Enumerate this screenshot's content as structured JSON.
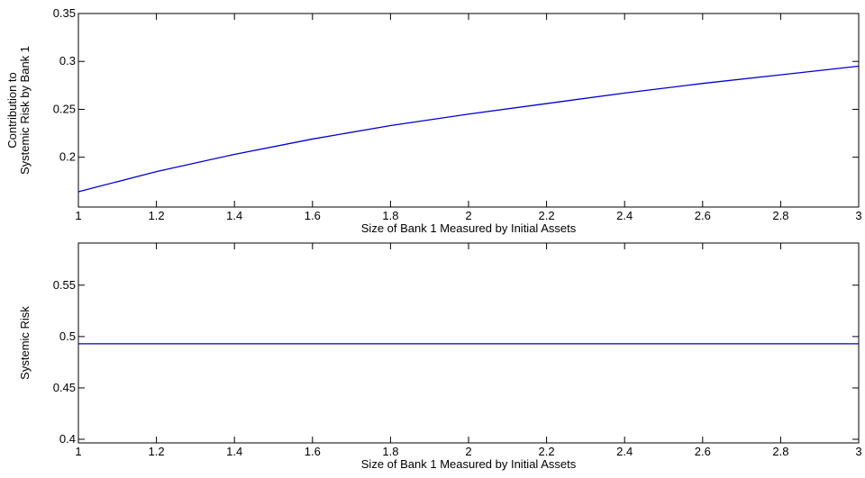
{
  "chart_data": [
    {
      "type": "line",
      "xlabel": "Size of Bank 1 Measured by Initial Assets",
      "ylabel": [
        "Contribution to",
        "Systemic Risk by Bank 1"
      ],
      "x": [
        1,
        1.2,
        1.4,
        1.6,
        1.8,
        2,
        2.2,
        2.4,
        2.6,
        2.8,
        3
      ],
      "series": [
        {
          "color": "#0000cc",
          "values": [
            0.164,
            0.185,
            0.203,
            0.219,
            0.233,
            0.245,
            0.256,
            0.267,
            0.277,
            0.286,
            0.295
          ]
        }
      ],
      "xlim": [
        1,
        3
      ],
      "xticks": [
        1,
        1.2,
        1.4,
        1.6,
        1.8,
        2,
        2.2,
        2.4,
        2.6,
        2.8,
        3
      ],
      "ylim": [
        0.148,
        0.35
      ],
      "yticks": [
        0.2,
        0.25,
        0.3,
        0.35
      ]
    },
    {
      "type": "line",
      "xlabel": "Size of Bank 1 Measured by Initial Assets",
      "ylabel": [
        "Systemic Risk"
      ],
      "x": [
        1,
        3
      ],
      "series": [
        {
          "color": "#0000cc",
          "values": [
            0.493,
            0.493
          ]
        }
      ],
      "xlim": [
        1,
        3
      ],
      "xticks": [
        1,
        1.2,
        1.4,
        1.6,
        1.8,
        2,
        2.2,
        2.4,
        2.6,
        2.8,
        3
      ],
      "ylim": [
        0.3965,
        0.591
      ],
      "yticks": [
        0.4,
        0.45,
        0.5,
        0.55
      ]
    }
  ]
}
